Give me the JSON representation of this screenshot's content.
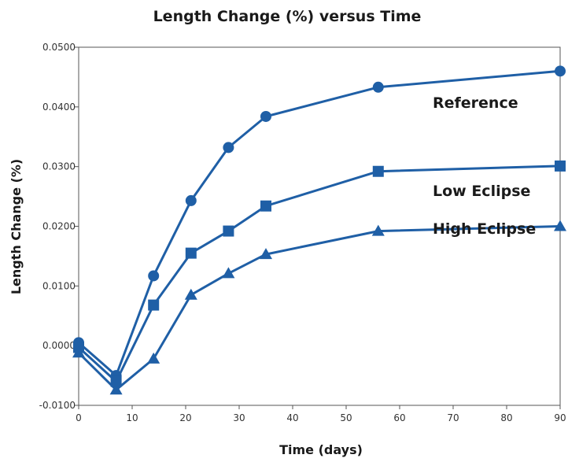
{
  "chart_data": {
    "type": "line",
    "title": "Length Change (%) versus Time",
    "xlabel": "Time (days)",
    "ylabel": "Length Change (%)",
    "xlim": [
      0,
      90
    ],
    "ylim": [
      -0.01,
      0.05
    ],
    "x_ticks": [
      0,
      10,
      20,
      30,
      40,
      50,
      60,
      70,
      80,
      90
    ],
    "x_tick_labels": [
      "0",
      "10",
      "20",
      "30",
      "40",
      "50",
      "60",
      "70",
      "80",
      "90"
    ],
    "y_ticks": [
      -0.01,
      0.0,
      0.01,
      0.02,
      0.03,
      0.04,
      0.05
    ],
    "y_tick_labels": [
      "-0.0100",
      "0.0000",
      "0.0100",
      "0.0200",
      "0.0300",
      "0.0400",
      "0.0500"
    ],
    "grid": false,
    "legend": "inline labels",
    "series": [
      {
        "name": "Reference",
        "marker": "circle",
        "color": "#1f5fa6",
        "x": [
          0,
          7,
          14,
          21,
          28,
          35,
          56,
          90
        ],
        "y": [
          0.0005,
          -0.005,
          0.0117,
          0.0243,
          0.0332,
          0.0384,
          0.0433,
          0.046
        ]
      },
      {
        "name": "Low Eclipse",
        "marker": "square",
        "color": "#1f5fa6",
        "x": [
          0,
          7,
          14,
          21,
          28,
          35,
          56,
          90
        ],
        "y": [
          -0.0003,
          -0.006,
          0.0068,
          0.0155,
          0.0192,
          0.0234,
          0.0292,
          0.0301
        ]
      },
      {
        "name": "High Eclipse",
        "marker": "triangle",
        "color": "#1f5fa6",
        "x": [
          0,
          7,
          14,
          21,
          28,
          35,
          56,
          90
        ],
        "y": [
          -0.0012,
          -0.0074,
          -0.0022,
          0.0085,
          0.0121,
          0.0153,
          0.0192,
          0.02
        ]
      }
    ]
  }
}
